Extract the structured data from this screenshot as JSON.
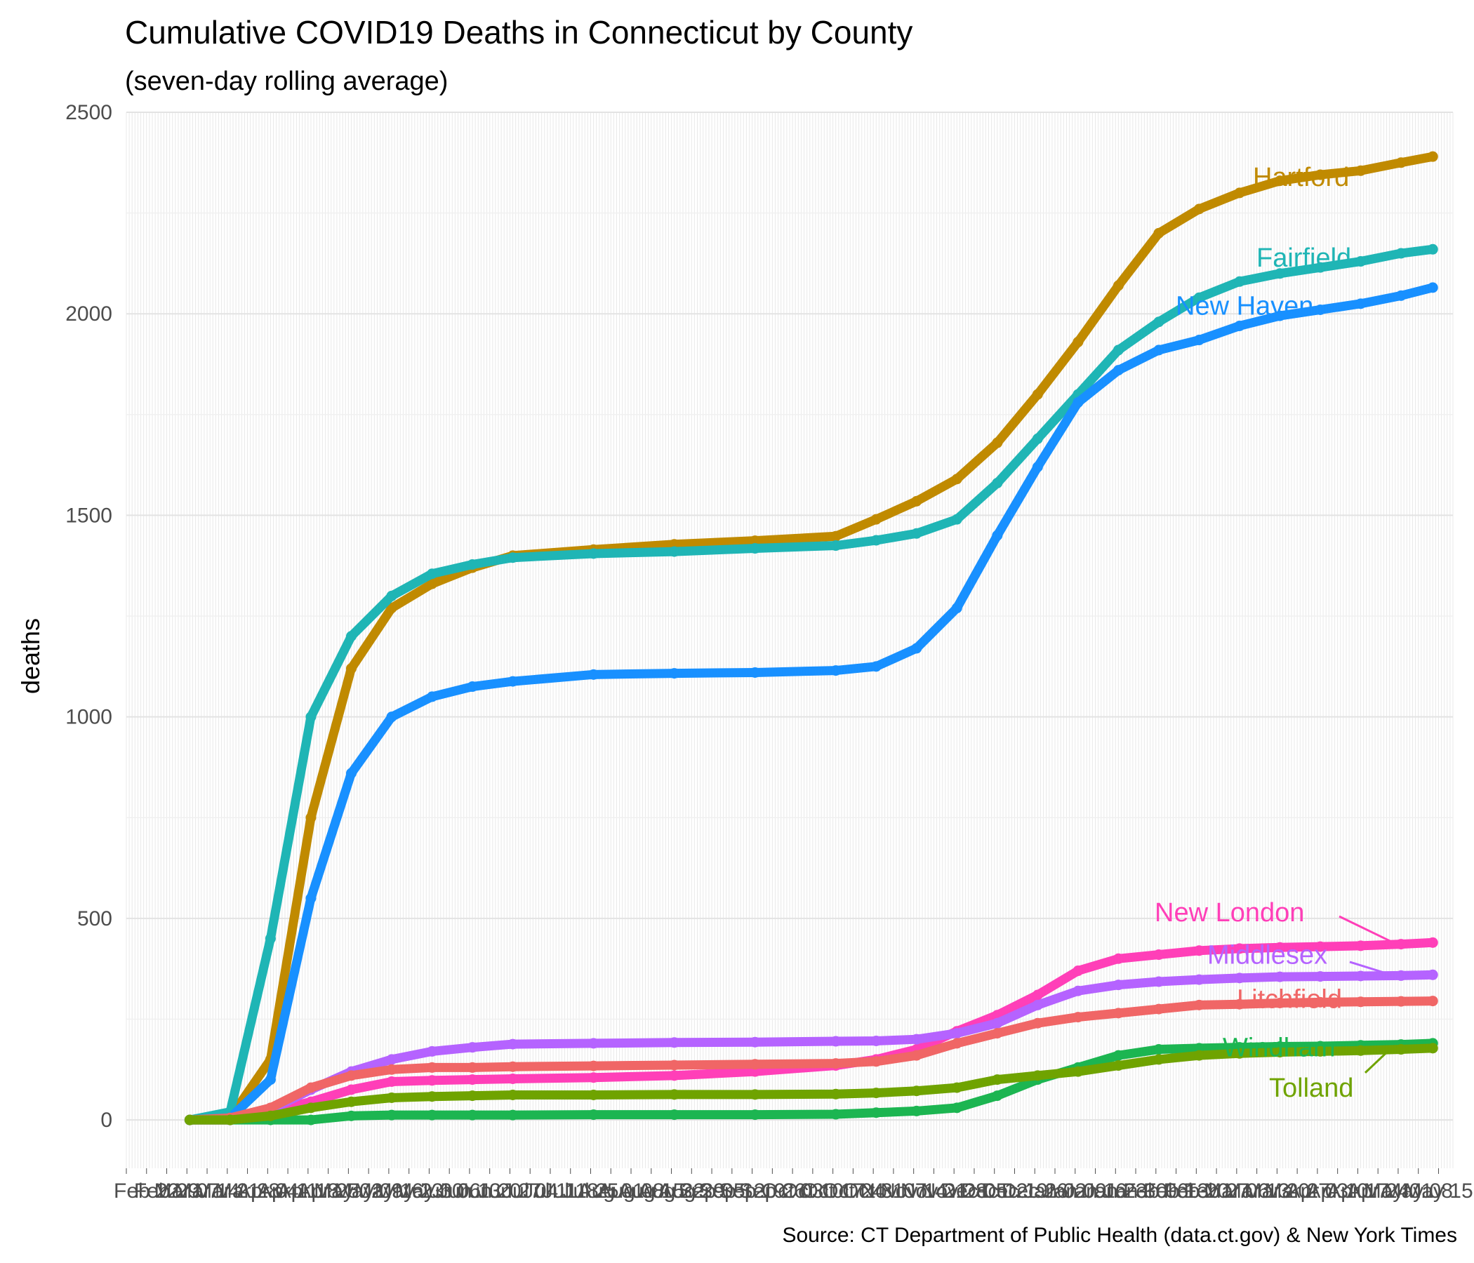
{
  "chart_data": {
    "type": "line",
    "title": "Cumulative COVID19 Deaths in Connecticut by County",
    "subtitle": "(seven-day rolling average)",
    "ylabel": "deaths",
    "xlabel": "",
    "caption": "Source: CT Department of Public Health (data.ct.gov) & New York Times",
    "ylim": [
      -120,
      2500
    ],
    "yticks": [
      0,
      500,
      1000,
      1500,
      2000,
      2500
    ],
    "xlim": [
      "2020-02-15",
      "2021-05-20"
    ],
    "grid": true,
    "legend": "none (direct labels)",
    "x": [
      "2020-03-08",
      "2020-03-22",
      "2020-04-05",
      "2020-04-19",
      "2020-05-03",
      "2020-05-17",
      "2020-05-31",
      "2020-06-14",
      "2020-06-28",
      "2020-07-26",
      "2020-08-23",
      "2020-09-20",
      "2020-10-18",
      "2020-11-01",
      "2020-11-15",
      "2020-11-29",
      "2020-12-13",
      "2020-12-27",
      "2021-01-10",
      "2021-01-24",
      "2021-02-07",
      "2021-02-21",
      "2021-03-07",
      "2021-03-21",
      "2021-04-04",
      "2021-04-18",
      "2021-05-02",
      "2021-05-13"
    ],
    "series": [
      {
        "name": "Hartford",
        "color": "#C08A00",
        "values": [
          0,
          5,
          150,
          750,
          1120,
          1270,
          1330,
          1370,
          1400,
          1415,
          1428,
          1437,
          1448,
          1490,
          1535,
          1590,
          1680,
          1800,
          1930,
          2070,
          2200,
          2260,
          2300,
          2330,
          2345,
          2355,
          2375,
          2390
        ]
      },
      {
        "name": "Fairfield",
        "color": "#1FB5B5",
        "values": [
          0,
          20,
          450,
          1000,
          1200,
          1300,
          1355,
          1378,
          1395,
          1405,
          1410,
          1418,
          1425,
          1438,
          1455,
          1490,
          1580,
          1690,
          1800,
          1910,
          1980,
          2040,
          2080,
          2100,
          2115,
          2130,
          2150,
          2160
        ]
      },
      {
        "name": "New Haven",
        "color": "#1890FF",
        "values": [
          0,
          5,
          100,
          550,
          860,
          1000,
          1050,
          1075,
          1088,
          1105,
          1108,
          1110,
          1115,
          1125,
          1170,
          1270,
          1450,
          1620,
          1780,
          1860,
          1910,
          1935,
          1970,
          1995,
          2010,
          2025,
          2045,
          2065
        ]
      },
      {
        "name": "New London",
        "color": "#FF3FB8",
        "values": [
          0,
          0,
          20,
          45,
          75,
          95,
          98,
          100,
          102,
          105,
          110,
          120,
          135,
          150,
          175,
          220,
          260,
          310,
          370,
          400,
          410,
          420,
          425,
          428,
          430,
          432,
          436,
          440
        ]
      },
      {
        "name": "Middlesex",
        "color": "#B563FF",
        "values": [
          0,
          0,
          25,
          75,
          120,
          150,
          170,
          180,
          188,
          190,
          192,
          193,
          195,
          196,
          200,
          215,
          240,
          285,
          320,
          335,
          343,
          348,
          352,
          355,
          356,
          357,
          358,
          360
        ]
      },
      {
        "name": "Litchfield",
        "color": "#F06666",
        "values": [
          0,
          5,
          30,
          80,
          110,
          125,
          130,
          130,
          132,
          134,
          136,
          138,
          140,
          145,
          160,
          190,
          215,
          240,
          255,
          265,
          275,
          285,
          287,
          290,
          292,
          293,
          294,
          295
        ]
      },
      {
        "name": "Windham",
        "color": "#1CB551",
        "values": [
          0,
          0,
          0,
          0,
          10,
          12,
          12,
          12,
          12,
          13,
          13,
          13,
          14,
          18,
          22,
          30,
          60,
          100,
          130,
          160,
          175,
          178,
          180,
          182,
          183,
          185,
          187,
          190
        ]
      },
      {
        "name": "Tolland",
        "color": "#6FA300",
        "values": [
          0,
          0,
          10,
          30,
          45,
          55,
          58,
          60,
          62,
          62,
          63,
          63,
          64,
          67,
          72,
          80,
          100,
          110,
          120,
          135,
          150,
          160,
          165,
          168,
          170,
          172,
          175,
          178
        ]
      }
    ],
    "annotations": [
      "Hartford",
      "Fairfield",
      "New Haven",
      "New London",
      "Middlesex",
      "Litchfield",
      "Windham",
      "Tolland"
    ]
  }
}
